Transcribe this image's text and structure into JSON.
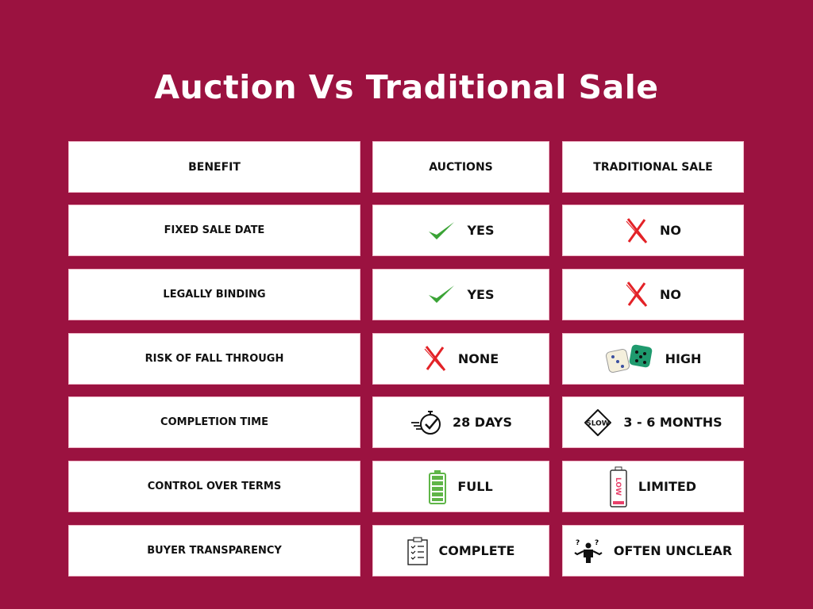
{
  "title": "Auction Vs Traditional Sale",
  "colors": {
    "background": "#9b1240",
    "cell": "#ffffff",
    "cell_border": "#f0b8c8",
    "check": "#3aa335",
    "cross": "#e32227"
  },
  "headers": [
    "BENEFIT",
    "AUCTIONS",
    "TRADITIONAL SALE"
  ],
  "rows": [
    {
      "benefit": "FIXED SALE DATE",
      "auction": "YES",
      "auction_icon": "check-icon",
      "traditional": "NO",
      "traditional_icon": "cross-icon"
    },
    {
      "benefit": "LEGALLY BINDING",
      "auction": "YES",
      "auction_icon": "check-icon",
      "traditional": "NO",
      "traditional_icon": "cross-icon"
    },
    {
      "benefit": "RISK OF FALL THROUGH",
      "auction": "NONE",
      "auction_icon": "cross-icon",
      "traditional": "HIGH",
      "traditional_icon": "dice-icon"
    },
    {
      "benefit": "COMPLETION TIME",
      "auction": "28 DAYS",
      "auction_icon": "fast-stopwatch-icon",
      "traditional": "3 - 6 MONTHS",
      "traditional_icon": "slow-sign-icon"
    },
    {
      "benefit": "CONTROL OVER TERMS",
      "auction": "FULL",
      "auction_icon": "full-battery-icon",
      "traditional": "LIMITED",
      "traditional_icon": "low-battery-icon"
    },
    {
      "benefit": "BUYER TRANSPARENCY",
      "auction": "COMPLETE",
      "auction_icon": "checklist-clipboard-icon",
      "traditional": "OFTEN UNCLEAR",
      "traditional_icon": "confused-person-icon"
    }
  ],
  "icon_text": {
    "slow": "SLOW",
    "low": "LOW"
  }
}
